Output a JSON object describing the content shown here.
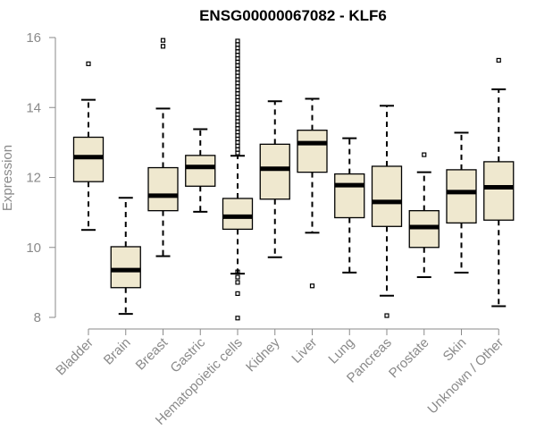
{
  "chart_data": {
    "type": "box",
    "title": "ENSG00000067082 - KLF6",
    "xlabel": "",
    "ylabel": "Expression",
    "ylim": [
      8,
      16
    ],
    "yticks": [
      8,
      10,
      12,
      14,
      16
    ],
    "categories": [
      "Bladder",
      "Brain",
      "Breast",
      "Gastric",
      "Hematopoietic cells",
      "Kidney",
      "Liver",
      "Lung",
      "Pancreas",
      "Prostate",
      "Skin",
      "Unknown / Other"
    ],
    "boxes": [
      {
        "label": "Bladder",
        "min": 10.5,
        "q1": 11.88,
        "median": 12.58,
        "q3": 13.15,
        "max": 14.22,
        "outliers": [
          15.25
        ]
      },
      {
        "label": "Brain",
        "min": 8.1,
        "q1": 8.85,
        "median": 9.35,
        "q3": 10.02,
        "max": 11.42,
        "outliers": []
      },
      {
        "label": "Breast",
        "min": 9.75,
        "q1": 11.05,
        "median": 11.48,
        "q3": 12.28,
        "max": 13.97,
        "outliers": [
          15.75,
          15.92
        ]
      },
      {
        "label": "Gastric",
        "min": 11.02,
        "q1": 11.75,
        "median": 12.3,
        "q3": 12.63,
        "max": 13.38,
        "outliers": []
      },
      {
        "label": "Hematopoietic cells",
        "min": 9.25,
        "q1": 10.52,
        "median": 10.88,
        "q3": 11.4,
        "max": 12.62,
        "outliers": [
          7.98,
          8.68,
          9.0,
          9.15,
          9.3,
          12.7,
          12.8,
          12.9,
          13.0,
          13.1,
          13.2,
          13.3,
          13.4,
          13.5,
          13.6,
          13.7,
          13.8,
          13.9,
          14.0,
          14.1,
          14.2,
          14.3,
          14.4,
          14.5,
          14.6,
          14.7,
          14.8,
          14.9,
          15.0,
          15.1,
          15.2,
          15.3,
          15.4,
          15.5,
          15.6,
          15.7,
          15.8,
          15.9
        ]
      },
      {
        "label": "Kidney",
        "min": 9.72,
        "q1": 11.38,
        "median": 12.25,
        "q3": 12.95,
        "max": 14.18,
        "outliers": []
      },
      {
        "label": "Liver",
        "min": 10.42,
        "q1": 12.15,
        "median": 12.98,
        "q3": 13.35,
        "max": 14.25,
        "outliers": [
          8.9
        ]
      },
      {
        "label": "Lung",
        "min": 9.28,
        "q1": 10.85,
        "median": 11.78,
        "q3": 12.1,
        "max": 13.12,
        "outliers": []
      },
      {
        "label": "Pancreas",
        "min": 8.62,
        "q1": 10.6,
        "median": 11.3,
        "q3": 12.32,
        "max": 14.05,
        "outliers": [
          8.05
        ]
      },
      {
        "label": "Prostate",
        "min": 9.15,
        "q1": 10.0,
        "median": 10.58,
        "q3": 11.05,
        "max": 12.15,
        "outliers": [
          12.65
        ]
      },
      {
        "label": "Skin",
        "min": 9.28,
        "q1": 10.7,
        "median": 11.58,
        "q3": 12.22,
        "max": 13.28,
        "outliers": []
      },
      {
        "label": "Unknown / Other",
        "min": 8.32,
        "q1": 10.78,
        "median": 11.72,
        "q3": 12.45,
        "max": 14.52,
        "outliers": [
          15.35
        ]
      }
    ]
  },
  "colors": {
    "box_fill": "#efe8cf",
    "axis": "#8a8a8a",
    "title": "#000000"
  }
}
